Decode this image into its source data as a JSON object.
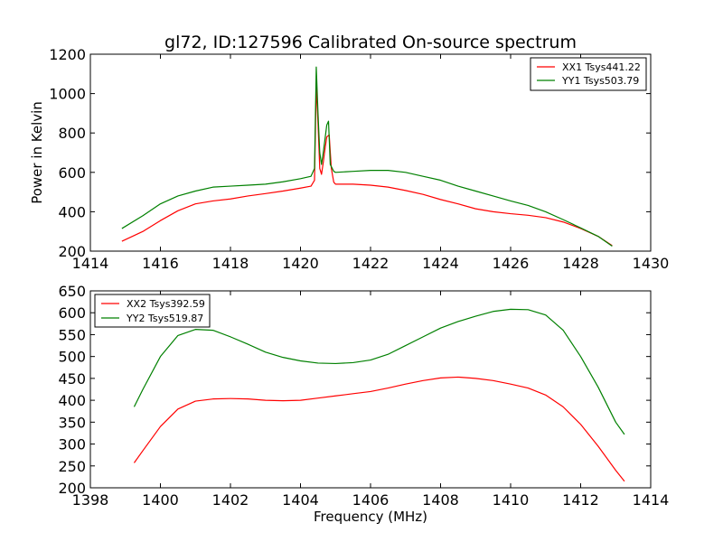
{
  "chart_data": [
    {
      "type": "line",
      "title": "gl72, ID:127596 Calibrated On-source spectrum",
      "xlabel": "",
      "ylabel": "Power in Kelvin",
      "xlim": [
        1414,
        1430
      ],
      "ylim": [
        200,
        1200
      ],
      "xticks": [
        "1414",
        "1416",
        "1418",
        "1420",
        "1422",
        "1424",
        "1426",
        "1428",
        "1430"
      ],
      "yticks": [
        "200",
        "400",
        "600",
        "800",
        "1000",
        "1200"
      ],
      "legend_position": "top-right",
      "series": [
        {
          "name": "XX1 Tsys441.22",
          "color": "#ff0000",
          "points": [
            [
              1414.9,
              250
            ],
            [
              1415.5,
              300
            ],
            [
              1416.0,
              355
            ],
            [
              1416.5,
              405
            ],
            [
              1417.0,
              440
            ],
            [
              1417.5,
              455
            ],
            [
              1418.0,
              465
            ],
            [
              1418.5,
              480
            ],
            [
              1419.0,
              492
            ],
            [
              1419.5,
              505
            ],
            [
              1420.0,
              520
            ],
            [
              1420.3,
              530
            ],
            [
              1420.4,
              560
            ],
            [
              1420.45,
              1040
            ],
            [
              1420.5,
              850
            ],
            [
              1420.55,
              620
            ],
            [
              1420.6,
              590
            ],
            [
              1420.65,
              650
            ],
            [
              1420.7,
              720
            ],
            [
              1420.75,
              780
            ],
            [
              1420.82,
              790
            ],
            [
              1420.88,
              620
            ],
            [
              1420.95,
              550
            ],
            [
              1421.0,
              540
            ],
            [
              1421.5,
              540
            ],
            [
              1422.0,
              535
            ],
            [
              1422.5,
              525
            ],
            [
              1423.0,
              508
            ],
            [
              1423.5,
              488
            ],
            [
              1424.0,
              462
            ],
            [
              1424.5,
              440
            ],
            [
              1425.0,
              415
            ],
            [
              1425.5,
              400
            ],
            [
              1426.0,
              390
            ],
            [
              1426.5,
              382
            ],
            [
              1427.0,
              370
            ],
            [
              1427.5,
              348
            ],
            [
              1428.0,
              315
            ],
            [
              1428.5,
              275
            ],
            [
              1428.9,
              228
            ]
          ]
        },
        {
          "name": "YY1 Tsys503.79",
          "color": "#008000",
          "points": [
            [
              1414.9,
              315
            ],
            [
              1415.5,
              380
            ],
            [
              1416.0,
              440
            ],
            [
              1416.5,
              480
            ],
            [
              1417.0,
              505
            ],
            [
              1417.5,
              525
            ],
            [
              1418.0,
              530
            ],
            [
              1418.5,
              535
            ],
            [
              1419.0,
              540
            ],
            [
              1419.5,
              552
            ],
            [
              1420.0,
              568
            ],
            [
              1420.3,
              580
            ],
            [
              1420.4,
              620
            ],
            [
              1420.45,
              1135
            ],
            [
              1420.5,
              900
            ],
            [
              1420.55,
              700
            ],
            [
              1420.6,
              640
            ],
            [
              1420.65,
              700
            ],
            [
              1420.7,
              770
            ],
            [
              1420.75,
              840
            ],
            [
              1420.8,
              860
            ],
            [
              1420.85,
              640
            ],
            [
              1420.95,
              605
            ],
            [
              1421.0,
              600
            ],
            [
              1421.5,
              605
            ],
            [
              1422.0,
              610
            ],
            [
              1422.5,
              610
            ],
            [
              1423.0,
              600
            ],
            [
              1423.5,
              580
            ],
            [
              1424.0,
              560
            ],
            [
              1424.5,
              530
            ],
            [
              1425.0,
              505
            ],
            [
              1425.5,
              480
            ],
            [
              1426.0,
              455
            ],
            [
              1426.5,
              432
            ],
            [
              1427.0,
              400
            ],
            [
              1427.5,
              360
            ],
            [
              1428.0,
              318
            ],
            [
              1428.5,
              275
            ],
            [
              1428.9,
              225
            ]
          ]
        }
      ]
    },
    {
      "type": "line",
      "title": "",
      "xlabel": "Frequency (MHz)",
      "ylabel": "",
      "xlim": [
        1398,
        1414
      ],
      "ylim": [
        200,
        650
      ],
      "xticks": [
        "1398",
        "1400",
        "1402",
        "1404",
        "1406",
        "1408",
        "1410",
        "1412",
        "1414"
      ],
      "yticks": [
        "200",
        "250",
        "300",
        "350",
        "400",
        "450",
        "500",
        "550",
        "600",
        "650"
      ],
      "legend_position": "top-left",
      "series": [
        {
          "name": "XX2 Tsys392.59",
          "color": "#ff0000",
          "points": [
            [
              1399.25,
              257
            ],
            [
              1399.5,
              285
            ],
            [
              1400.0,
              340
            ],
            [
              1400.5,
              380
            ],
            [
              1401.0,
              398
            ],
            [
              1401.5,
              403
            ],
            [
              1402.0,
              404
            ],
            [
              1402.5,
              403
            ],
            [
              1403.0,
              400
            ],
            [
              1403.5,
              399
            ],
            [
              1404.0,
              400
            ],
            [
              1404.5,
              405
            ],
            [
              1405.0,
              410
            ],
            [
              1405.5,
              415
            ],
            [
              1406.0,
              420
            ],
            [
              1406.5,
              428
            ],
            [
              1407.0,
              437
            ],
            [
              1407.5,
              445
            ],
            [
              1408.0,
              451
            ],
            [
              1408.5,
              453
            ],
            [
              1409.0,
              450
            ],
            [
              1409.5,
              445
            ],
            [
              1410.0,
              437
            ],
            [
              1410.5,
              428
            ],
            [
              1411.0,
              412
            ],
            [
              1411.5,
              385
            ],
            [
              1412.0,
              345
            ],
            [
              1412.5,
              295
            ],
            [
              1413.0,
              240
            ],
            [
              1413.25,
              215
            ]
          ]
        },
        {
          "name": "YY2 Tsys519.87",
          "color": "#008000",
          "points": [
            [
              1399.25,
              385
            ],
            [
              1399.5,
              425
            ],
            [
              1400.0,
              500
            ],
            [
              1400.5,
              548
            ],
            [
              1401.0,
              562
            ],
            [
              1401.5,
              560
            ],
            [
              1402.0,
              545
            ],
            [
              1402.5,
              528
            ],
            [
              1403.0,
              510
            ],
            [
              1403.5,
              498
            ],
            [
              1404.0,
              490
            ],
            [
              1404.5,
              485
            ],
            [
              1405.0,
              484
            ],
            [
              1405.5,
              486
            ],
            [
              1406.0,
              492
            ],
            [
              1406.5,
              505
            ],
            [
              1407.0,
              525
            ],
            [
              1407.5,
              545
            ],
            [
              1408.0,
              565
            ],
            [
              1408.5,
              580
            ],
            [
              1409.0,
              592
            ],
            [
              1409.5,
              603
            ],
            [
              1410.0,
              608
            ],
            [
              1410.5,
              607
            ],
            [
              1411.0,
              595
            ],
            [
              1411.5,
              560
            ],
            [
              1412.0,
              500
            ],
            [
              1412.5,
              430
            ],
            [
              1413.0,
              350
            ],
            [
              1413.25,
              322
            ]
          ]
        }
      ]
    }
  ]
}
